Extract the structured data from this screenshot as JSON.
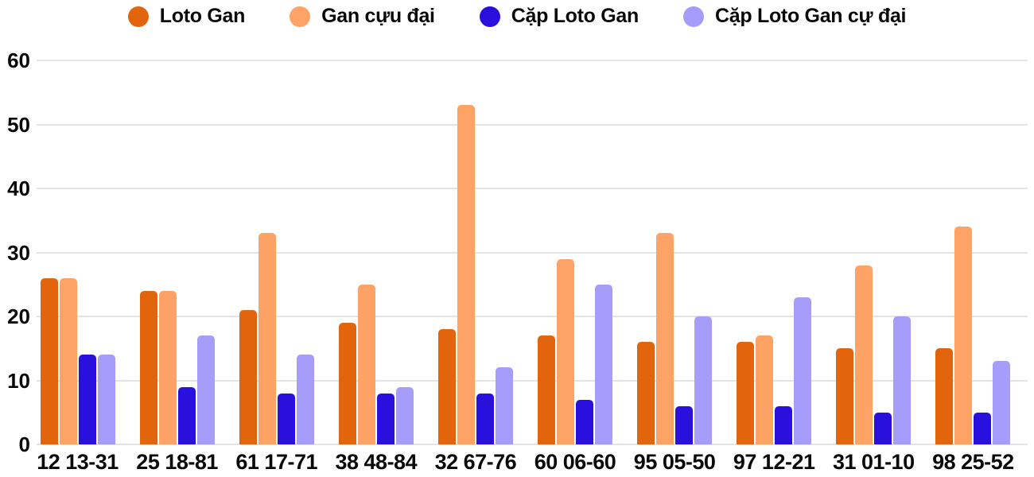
{
  "colors": {
    "background": "#ffffff",
    "grid_line": "#e4e4e4",
    "text": "#0a0a0a"
  },
  "chart_data": {
    "type": "bar",
    "title": "",
    "xlabel": "",
    "ylabel": "",
    "ylim": [
      0,
      60
    ],
    "yticks": [
      0,
      10,
      20,
      30,
      40,
      50,
      60
    ],
    "grid": "horizontal-only",
    "legend_position": "top-center",
    "categories": [
      "12 13-31",
      "25 18-81",
      "61 17-71",
      "38 48-84",
      "32 67-76",
      "60 06-60",
      "95 05-50",
      "97 12-21",
      "31 01-10",
      "98 25-52"
    ],
    "series": [
      {
        "name": "Loto Gan",
        "color": "#e2650e",
        "values": [
          26,
          24,
          21,
          19,
          18,
          17,
          16,
          16,
          15,
          15
        ]
      },
      {
        "name": "Gan cựu đại",
        "color": "#ffa266",
        "values": [
          26,
          24,
          33,
          25,
          53,
          29,
          33,
          17,
          28,
          34
        ]
      },
      {
        "name": "Cặp Loto Gan",
        "color": "#2a10dc",
        "values": [
          14,
          9,
          8,
          8,
          8,
          7,
          6,
          6,
          5,
          5
        ]
      },
      {
        "name": "Cặp Loto Gan cự đại",
        "color": "#a69cfa",
        "values": [
          14,
          17,
          14,
          9,
          12,
          25,
          20,
          23,
          20,
          13
        ]
      }
    ]
  }
}
